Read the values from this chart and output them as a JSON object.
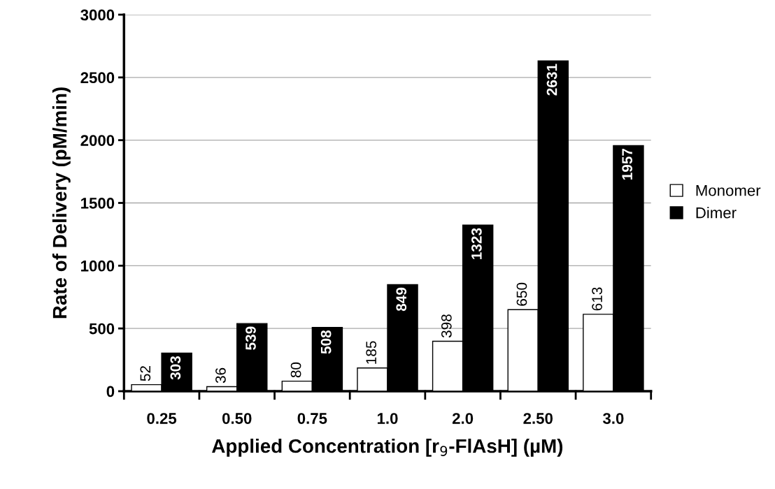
{
  "chart_data": {
    "type": "bar",
    "xlabel": "Applied Concentration [r$_{9}$-FlAsH] (µM)",
    "ylabel": "Rate of Delivery (pM/min)",
    "categories": [
      "0.25",
      "0.50",
      "0.75",
      "1.0",
      "2.0",
      "2.50",
      "3.0"
    ],
    "series": [
      {
        "name": "Monomer",
        "color": "#ffffff",
        "values": [
          52,
          36,
          80,
          185,
          398,
          650,
          613
        ]
      },
      {
        "name": "Dimer",
        "color": "#000000",
        "values": [
          303,
          539,
          508,
          849,
          1323,
          2631,
          1957
        ]
      }
    ],
    "ylim": [
      0,
      3000
    ],
    "yticks": [
      0,
      500,
      1000,
      1500,
      2000,
      2500,
      3000
    ],
    "grid": "y",
    "legend": "right",
    "data_labels": true
  }
}
